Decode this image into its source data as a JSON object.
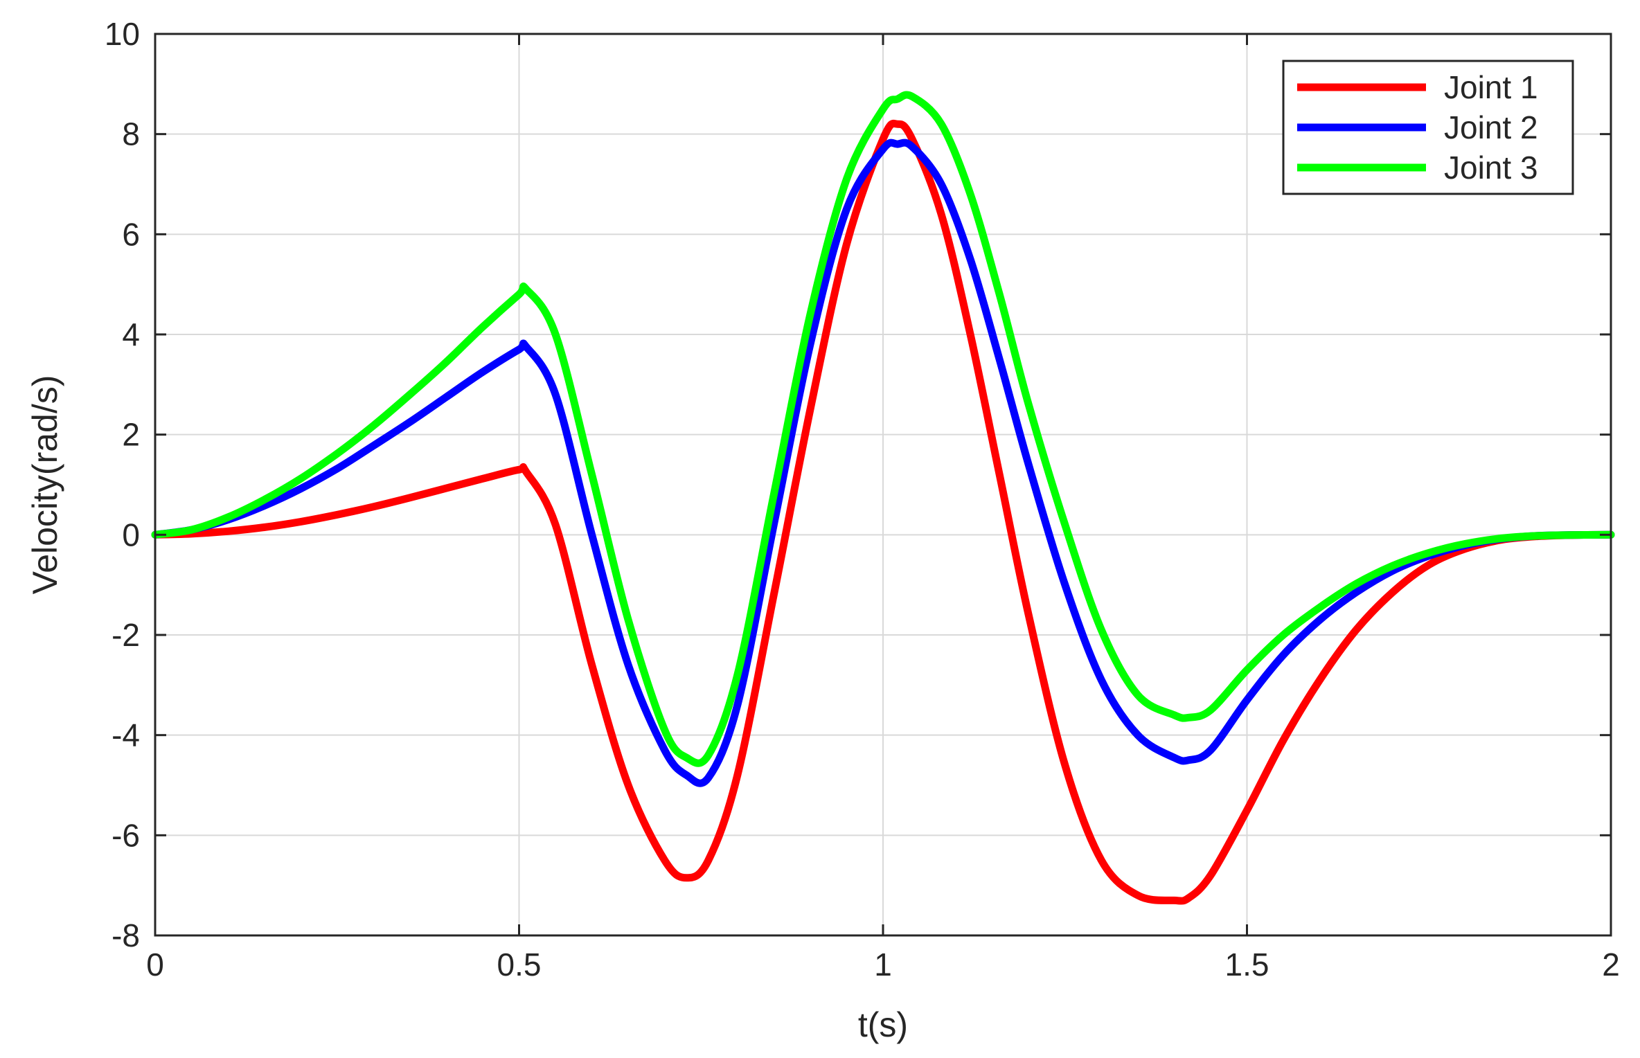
{
  "chart_data": {
    "type": "line",
    "title": "",
    "xlabel": "t(s)",
    "ylabel": "Velocity(rad/s)",
    "xlim": [
      0,
      2
    ],
    "ylim": [
      -8,
      10
    ],
    "xticks": [
      0,
      0.5,
      1,
      1.5,
      2
    ],
    "xtick_labels": [
      "0",
      "0.5",
      "1",
      "1.5",
      "2"
    ],
    "yticks": [
      -8,
      -6,
      -4,
      -2,
      0,
      2,
      4,
      6,
      8,
      10
    ],
    "ytick_labels": [
      "-8",
      "-6",
      "-4",
      "-2",
      "0",
      "2",
      "4",
      "6",
      "8",
      "10"
    ],
    "grid": true,
    "legend_position": "top-right",
    "x": [
      0,
      0.05,
      0.1,
      0.15,
      0.2,
      0.25,
      0.3,
      0.35,
      0.4,
      0.45,
      0.5,
      0.51,
      0.55,
      0.6,
      0.65,
      0.7,
      0.73,
      0.76,
      0.8,
      0.85,
      0.9,
      0.95,
      1.0,
      1.02,
      1.04,
      1.08,
      1.12,
      1.16,
      1.2,
      1.25,
      1.3,
      1.35,
      1.4,
      1.42,
      1.45,
      1.5,
      1.55,
      1.6,
      1.65,
      1.7,
      1.75,
      1.8,
      1.85,
      1.9,
      1.95,
      2.0
    ],
    "series": [
      {
        "name": "Joint 1",
        "color": "#ff0000",
        "values": [
          0,
          0.02,
          0.07,
          0.15,
          0.26,
          0.4,
          0.56,
          0.74,
          0.93,
          1.12,
          1.3,
          1.25,
          0.2,
          -2.6,
          -5.0,
          -6.5,
          -6.85,
          -6.5,
          -4.8,
          -1.2,
          2.5,
          5.8,
          7.9,
          8.2,
          7.9,
          6.4,
          4.0,
          1.2,
          -1.6,
          -4.6,
          -6.5,
          -7.2,
          -7.3,
          -7.25,
          -6.8,
          -5.5,
          -4.1,
          -2.9,
          -1.9,
          -1.15,
          -0.6,
          -0.28,
          -0.1,
          -0.03,
          -0.005,
          0
        ]
      },
      {
        "name": "Joint 2",
        "color": "#0000ff",
        "values": [
          0,
          0.1,
          0.3,
          0.58,
          0.92,
          1.32,
          1.78,
          2.25,
          2.75,
          3.25,
          3.7,
          3.75,
          2.8,
          0.0,
          -2.6,
          -4.3,
          -4.8,
          -4.85,
          -3.4,
          0.2,
          3.8,
          6.5,
          7.7,
          7.8,
          7.75,
          7.0,
          5.5,
          3.5,
          1.4,
          -1.0,
          -2.9,
          -4.0,
          -4.45,
          -4.5,
          -4.3,
          -3.3,
          -2.4,
          -1.7,
          -1.15,
          -0.72,
          -0.42,
          -0.21,
          -0.08,
          -0.02,
          -0.003,
          0
        ]
      },
      {
        "name": "Joint 3",
        "color": "#00ff00",
        "values": [
          0,
          0.1,
          0.35,
          0.7,
          1.12,
          1.62,
          2.18,
          2.8,
          3.45,
          4.15,
          4.8,
          4.9,
          4.0,
          1.2,
          -1.7,
          -3.9,
          -4.45,
          -4.4,
          -2.8,
          0.8,
          4.4,
          7.1,
          8.5,
          8.7,
          8.75,
          8.2,
          6.8,
          4.8,
          2.6,
          0.2,
          -1.9,
          -3.2,
          -3.6,
          -3.65,
          -3.5,
          -2.7,
          -2.0,
          -1.45,
          -0.98,
          -0.62,
          -0.36,
          -0.18,
          -0.07,
          -0.02,
          -0.003,
          0
        ]
      }
    ]
  }
}
